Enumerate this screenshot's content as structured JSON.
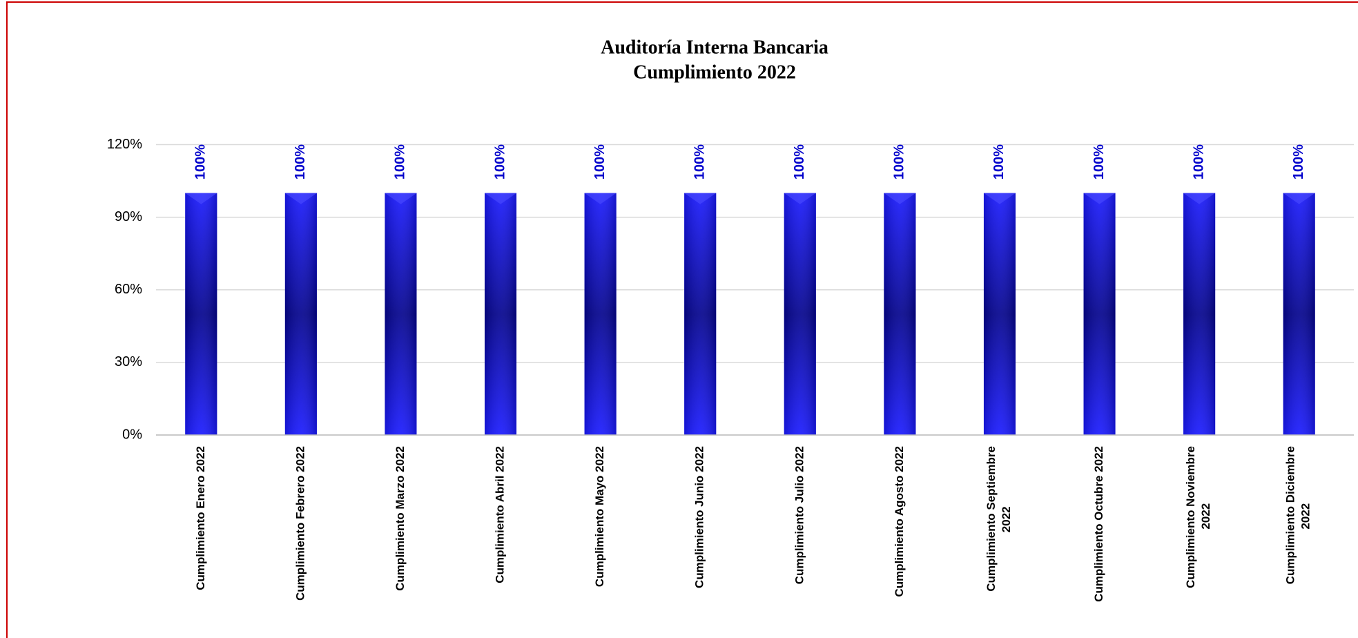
{
  "chart_data": {
    "type": "bar",
    "title": "Auditoría Interna Bancaria",
    "subtitle": "Cumplimiento 2022",
    "categories": [
      "Cumplimiento Enero 2022",
      "Cumplimiento Febrero 2022",
      "Cumplimiento Marzo 2022",
      "Cumplimiento Abril 2022",
      "Cumplimiento Mayo 2022",
      "Cumplimiento Junio 2022",
      "Cumplimiento Julio 2022",
      "Cumplimiento Agosto 2022",
      "Cumplimiento Septiembre 2022",
      "Cumplimiento Octubre 2022",
      "Cumplimiento Noviembre 2022",
      "Cumplimiento Diciembre 2022"
    ],
    "values": [
      100,
      100,
      100,
      100,
      100,
      100,
      100,
      100,
      100,
      100,
      100,
      100
    ],
    "value_labels": [
      "100%",
      "100%",
      "100%",
      "100%",
      "100%",
      "100%",
      "100%",
      "100%",
      "100%",
      "100%",
      "100%",
      "100%"
    ],
    "color": "#1a1aff",
    "ylim": [
      0,
      120
    ],
    "yticks": [
      {
        "value": 0,
        "label": "0%"
      },
      {
        "value": 30,
        "label": "30%"
      },
      {
        "value": 60,
        "label": "60%"
      },
      {
        "value": 90,
        "label": "90%"
      },
      {
        "value": 120,
        "label": "120%"
      }
    ],
    "grid": true
  }
}
